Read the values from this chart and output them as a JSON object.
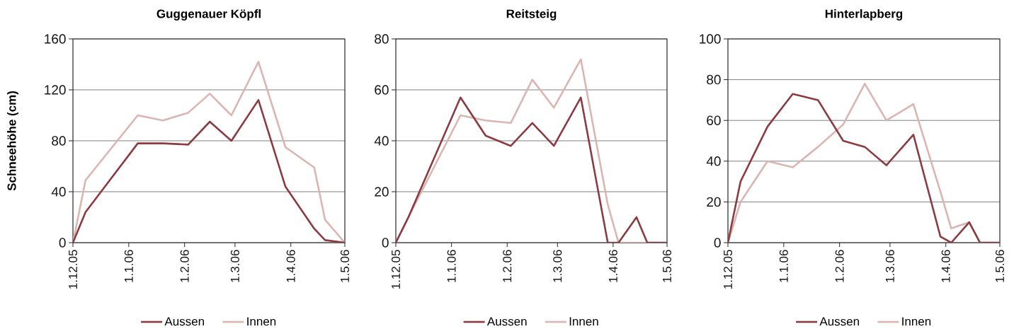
{
  "chart_data": [
    {
      "type": "line",
      "title": "Guggenauer Köpfl",
      "ylabel": "Schneehöhe (cm)",
      "x": [
        "2005-12-01",
        "2005-12-08",
        "2006-01-06",
        "2006-01-20",
        "2006-02-03",
        "2006-02-15",
        "2006-02-27",
        "2006-03-14",
        "2006-03-29",
        "2006-04-14",
        "2006-04-20",
        "2006-05-01"
      ],
      "series": [
        {
          "name": "Aussen",
          "color": "#8c3b40",
          "values": [
            0,
            24,
            78,
            78,
            77,
            95,
            80,
            112,
            44,
            11,
            2,
            0
          ]
        },
        {
          "name": "Innen",
          "color": "#dbb5b1",
          "values": [
            0,
            49,
            100,
            96,
            102,
            117,
            100,
            142,
            75,
            59,
            18,
            0
          ]
        }
      ],
      "xlim": [
        "2005-12-01",
        "2006-05-01"
      ],
      "xticks": [
        {
          "value": "2005-12-01",
          "label": "1.12.05"
        },
        {
          "value": "2006-01-01",
          "label": "1.1.06"
        },
        {
          "value": "2006-02-01",
          "label": "1.2.06"
        },
        {
          "value": "2006-03-01",
          "label": "1.3.06"
        },
        {
          "value": "2006-04-01",
          "label": "1.4.06"
        },
        {
          "value": "2006-05-01",
          "label": "1.5.06"
        }
      ],
      "ylim": [
        0,
        160
      ],
      "yticks": [
        0,
        40,
        80,
        120,
        160
      ],
      "grid": "y",
      "legend": "bottom"
    },
    {
      "type": "line",
      "title": "Reitsteig",
      "x": [
        "2005-12-01",
        "2005-12-08",
        "2006-01-06",
        "2006-01-20",
        "2006-02-03",
        "2006-02-15",
        "2006-02-27",
        "2006-03-14",
        "2006-03-29",
        "2006-04-04",
        "2006-04-14",
        "2006-04-20",
        "2006-05-01"
      ],
      "series": [
        {
          "name": "Aussen",
          "color": "#8c3b40",
          "values": [
            0,
            10,
            57,
            42,
            38,
            47,
            38,
            57,
            0,
            0,
            10,
            0,
            0
          ]
        },
        {
          "name": "Innen",
          "color": "#dbb5b1",
          "values": [
            0,
            10,
            50,
            48,
            47,
            64,
            53,
            72,
            15,
            0,
            0,
            0,
            0
          ]
        }
      ],
      "xlim": [
        "2005-12-01",
        "2006-05-01"
      ],
      "xticks": [
        {
          "value": "2005-12-01",
          "label": "1.12.05"
        },
        {
          "value": "2006-01-01",
          "label": "1.1.06"
        },
        {
          "value": "2006-02-01",
          "label": "1.2.06"
        },
        {
          "value": "2006-03-01",
          "label": "1.3.06"
        },
        {
          "value": "2006-04-01",
          "label": "1.4.06"
        },
        {
          "value": "2006-05-01",
          "label": "1.5.06"
        }
      ],
      "ylim": [
        0,
        80
      ],
      "yticks": [
        0,
        20,
        40,
        60,
        80
      ],
      "grid": "y",
      "legend": "bottom"
    },
    {
      "type": "line",
      "title": "Hinterlapberg",
      "x": [
        "2005-12-01",
        "2005-12-08",
        "2005-12-23",
        "2006-01-06",
        "2006-01-20",
        "2006-02-03",
        "2006-02-15",
        "2006-02-27",
        "2006-03-14",
        "2006-03-29",
        "2006-04-04",
        "2006-04-14",
        "2006-04-20",
        "2006-05-01"
      ],
      "series": [
        {
          "name": "Aussen",
          "color": "#8c3b40",
          "values": [
            0,
            30,
            57,
            73,
            70,
            50,
            47,
            38,
            53,
            3,
            0,
            10,
            0,
            0
          ]
        },
        {
          "name": "Innen",
          "color": "#dbb5b1",
          "values": [
            0,
            20,
            40,
            37,
            47,
            58,
            78,
            60,
            68,
            25,
            7,
            10,
            0,
            0
          ]
        }
      ],
      "xlim": [
        "2005-12-01",
        "2006-05-01"
      ],
      "xticks": [
        {
          "value": "2005-12-01",
          "label": "1.12.05"
        },
        {
          "value": "2006-01-01",
          "label": "1.1.06"
        },
        {
          "value": "2006-02-01",
          "label": "1.2.06"
        },
        {
          "value": "2006-03-01",
          "label": "1.3.06"
        },
        {
          "value": "2006-04-01",
          "label": "1.4.06"
        },
        {
          "value": "2006-05-01",
          "label": "1.5.06"
        }
      ],
      "ylim": [
        0,
        100
      ],
      "yticks": [
        0,
        20,
        40,
        60,
        80,
        100
      ],
      "grid": "y",
      "legend": "bottom"
    }
  ]
}
